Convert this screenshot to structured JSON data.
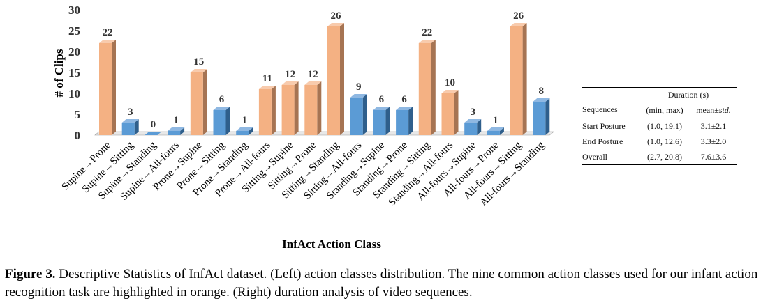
{
  "chart_data": {
    "type": "bar",
    "ylabel": "# of Clips",
    "xlabel": "InfAct Action Class",
    "ylim": [
      0,
      30
    ],
    "yticks": [
      0,
      5,
      10,
      15,
      20,
      25,
      30
    ],
    "categories": [
      "Supine→Prone",
      "Supine→Sitting",
      "Supine→Standing",
      "Supine→All-fours",
      "Prone→Supine",
      "Prone→Sitting",
      "Prone→Standing",
      "Prone→All-fours",
      "Sitting→Supine",
      "Sitting→Prone",
      "Sitting→Standing",
      "Sitting→All-fours",
      "Standing→Supine",
      "Standing→Prone",
      "Standing→Sitting",
      "Standing→All-fours",
      "All-fours→Supine",
      "All-fours→Prone",
      "All-fours→Sitting",
      "All-fours→Standing"
    ],
    "values": [
      22,
      3,
      0,
      1,
      15,
      6,
      1,
      11,
      12,
      12,
      26,
      9,
      6,
      6,
      22,
      10,
      3,
      1,
      26,
      8
    ],
    "highlighted": [
      true,
      false,
      false,
      false,
      true,
      false,
      false,
      true,
      true,
      true,
      true,
      false,
      false,
      false,
      true,
      true,
      false,
      false,
      true,
      false
    ],
    "grid": false,
    "colors": {
      "highlight_front": "#f4b183",
      "highlight_side": "#a67453",
      "highlight_top": "#f8cbad",
      "normal_front": "#5b9bd5",
      "normal_side": "#2f5f8c",
      "normal_top": "#8fb8e2",
      "floor": "#9a9a9a"
    }
  },
  "duration_table": {
    "group_header": "Duration (s)",
    "columns": [
      "Sequences",
      "(min, max)",
      "mean±std."
    ],
    "rows": [
      {
        "label": "Start Posture",
        "range": "(1.0, 19.1)",
        "mean": "3.1±2.1"
      },
      {
        "label": "End Posture",
        "range": "(1.0, 12.6)",
        "mean": "3.3±2.0"
      },
      {
        "label": "Overall",
        "range": "(2.7, 20.8)",
        "mean": "7.6±3.6"
      }
    ]
  },
  "caption": {
    "label": "Figure 3.",
    "text": "Descriptive Statistics of InfAct dataset. (Left) action classes distribution. The nine common action classes used for our infant action recognition task are highlighted in orange. (Right) duration analysis of video sequences."
  }
}
